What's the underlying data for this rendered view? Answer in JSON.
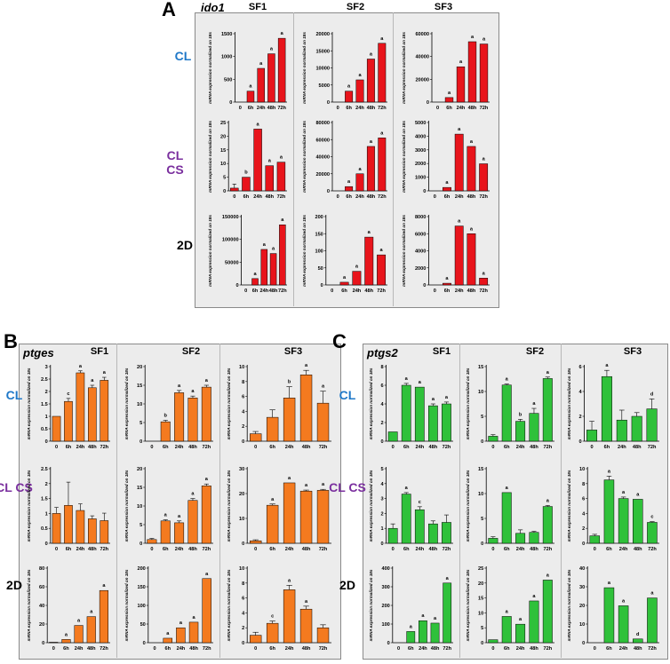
{
  "figure": {
    "colors": {
      "red": "#e8141b",
      "orange": "#f47a1f",
      "green": "#2fc13a",
      "cl": "#1f78c8",
      "clcs": "#7a2f9e",
      "twod": "#000000"
    },
    "ylabel": "mRNA expression normalized on 18s",
    "rows": [
      "CL",
      "CL CS",
      "2D"
    ],
    "columns": [
      "SF1",
      "SF2",
      "SF3"
    ],
    "categories": [
      "0",
      "6h",
      "24h",
      "48h",
      "72h"
    ]
  },
  "panels": [
    {
      "letter": "A",
      "gene": "ido1"
    },
    {
      "letter": "B",
      "gene": "ptges"
    },
    {
      "letter": "C",
      "gene": "ptgs2"
    }
  ],
  "chart_data": [
    {
      "panel": "A",
      "gene": "ido1",
      "type": "bar",
      "color": "red",
      "sheets": [
        {
          "row": "CL",
          "col": "SF1",
          "ticks": [
            "0",
            "500",
            "1000",
            "1500"
          ],
          "ylim": [
            0,
            1500
          ],
          "values": [
            0,
            240,
            740,
            1060,
            1400
          ],
          "errors": [
            0,
            0,
            0,
            0,
            0
          ],
          "letters": [
            "",
            "a",
            "a",
            "a",
            "a"
          ]
        },
        {
          "row": "CL",
          "col": "SF2",
          "ticks": [
            "0",
            "5000",
            "10000",
            "15000",
            "20000"
          ],
          "ylim": [
            0,
            20000
          ],
          "values": [
            0,
            3200,
            6500,
            12600,
            17200
          ],
          "errors": [
            0,
            0,
            0,
            0,
            0
          ],
          "letters": [
            "",
            "a",
            "a",
            "a",
            "a"
          ]
        },
        {
          "row": "CL",
          "col": "SF3",
          "ticks": [
            "0",
            "20000",
            "40000",
            "60000"
          ],
          "ylim": [
            0,
            60000
          ],
          "values": [
            0,
            4000,
            31000,
            53000,
            51000
          ],
          "errors": [
            0,
            0,
            0,
            0,
            0
          ],
          "letters": [
            "",
            "a",
            "a",
            "a",
            "a"
          ]
        },
        {
          "row": "CL CS",
          "col": "SF1",
          "ticks": [
            "0",
            "5",
            "10",
            "15",
            "20",
            "25"
          ],
          "ylim": [
            0,
            25
          ],
          "values": [
            1,
            5,
            22.6,
            9.2,
            10.5
          ],
          "errors": [
            1.5,
            0,
            0,
            0,
            0
          ],
          "letters": [
            "",
            "b",
            "a",
            "a",
            "a"
          ]
        },
        {
          "row": "CL CS",
          "col": "SF2",
          "ticks": [
            "0",
            "20000",
            "40000",
            "60000",
            "80000"
          ],
          "ylim": [
            0,
            80000
          ],
          "values": [
            0,
            5000,
            20000,
            52000,
            62000
          ],
          "errors": [
            0,
            0,
            0,
            0,
            0
          ],
          "letters": [
            "",
            "a",
            "a",
            "a",
            "a"
          ]
        },
        {
          "row": "CL CS",
          "col": "SF3",
          "ticks": [
            "0",
            "1000",
            "2000",
            "3000",
            "4000",
            "5000"
          ],
          "ylim": [
            0,
            5000
          ],
          "values": [
            0,
            250,
            4150,
            3250,
            1980
          ],
          "errors": [
            0,
            0,
            0,
            0,
            0
          ],
          "letters": [
            "",
            "a",
            "a",
            "a",
            "a"
          ]
        },
        {
          "row": "2D",
          "col": "SF1",
          "ticks": [
            "0",
            "50000",
            "100000",
            "150000"
          ],
          "ylim": [
            0,
            150000
          ],
          "values": [
            0,
            14000,
            78000,
            69000,
            132000
          ],
          "errors": [
            0,
            0,
            0,
            0,
            0
          ],
          "letters": [
            "",
            "a",
            "a",
            "a",
            "a"
          ]
        },
        {
          "row": "2D",
          "col": "SF2",
          "ticks": [
            "0",
            "50",
            "100",
            "150",
            "200"
          ],
          "ylim": [
            0,
            200
          ],
          "values": [
            0,
            8,
            40,
            140,
            88
          ],
          "errors": [
            0,
            0,
            0,
            0,
            0
          ],
          "letters": [
            "",
            "a",
            "a",
            "a",
            "a"
          ]
        },
        {
          "row": "2D",
          "col": "SF3",
          "ticks": [
            "0",
            "2000",
            "4000",
            "6000",
            "8000"
          ],
          "ylim": [
            0,
            8000
          ],
          "values": [
            0,
            200,
            6900,
            6000,
            800
          ],
          "errors": [
            0,
            0,
            0,
            0,
            0
          ],
          "letters": [
            "",
            "a",
            "a",
            "a",
            "a"
          ]
        }
      ]
    },
    {
      "panel": "B",
      "gene": "ptges",
      "type": "bar",
      "color": "orange",
      "sheets": [
        {
          "row": "CL",
          "col": "SF1",
          "ticks": [
            "0",
            "0.5",
            "1",
            "1.5",
            "2",
            "2.5",
            "3"
          ],
          "ylim": [
            0,
            3
          ],
          "values": [
            1,
            1.6,
            2.75,
            2.15,
            2.45
          ],
          "errors": [
            0,
            0.12,
            0.08,
            0.1,
            0.12
          ],
          "letters": [
            "",
            "c",
            "a",
            "a",
            "a"
          ]
        },
        {
          "row": "CL",
          "col": "SF2",
          "ticks": [
            "0",
            "5",
            "10",
            "15",
            "20"
          ],
          "ylim": [
            0,
            20
          ],
          "values": [
            0,
            5.2,
            13,
            11.6,
            14.5
          ],
          "errors": [
            0,
            0.4,
            0.6,
            0.5,
            0.5
          ],
          "letters": [
            "",
            "b",
            "a",
            "a",
            "a"
          ]
        },
        {
          "row": "CL",
          "col": "SF3",
          "ticks": [
            "0",
            "2",
            "4",
            "6",
            "8",
            "10"
          ],
          "ylim": [
            0,
            10
          ],
          "values": [
            1,
            3.2,
            5.8,
            8.9,
            5.1
          ],
          "errors": [
            0.3,
            1.0,
            1.5,
            0.6,
            1.6
          ],
          "letters": [
            "",
            "",
            "b",
            "a",
            "a"
          ]
        },
        {
          "row": "CL CS",
          "col": "SF1",
          "ticks": [
            "0",
            "0.5",
            "1",
            "1.5",
            "2",
            "2.5"
          ],
          "ylim": [
            0,
            2.5
          ],
          "values": [
            1,
            1.27,
            1.1,
            0.82,
            0.76
          ],
          "errors": [
            0.2,
            0.78,
            0.22,
            0.1,
            0.25
          ],
          "letters": [
            "",
            "",
            "",
            "",
            ""
          ]
        },
        {
          "row": "CL CS",
          "col": "SF2",
          "ticks": [
            "0",
            "5",
            "10",
            "15",
            "20"
          ],
          "ylim": [
            0,
            20
          ],
          "values": [
            1,
            6,
            5.5,
            11.5,
            15.4
          ],
          "errors": [
            0.3,
            0.3,
            0.5,
            0.5,
            0.5
          ],
          "letters": [
            "",
            "a",
            "a",
            "a",
            "a"
          ]
        },
        {
          "row": "CL CS",
          "col": "SF3",
          "ticks": [
            "0",
            "10",
            "20",
            "30"
          ],
          "ylim": [
            0,
            30
          ],
          "values": [
            1,
            15.3,
            24.3,
            21,
            21.3
          ],
          "errors": [
            0.4,
            0.5,
            0,
            0.4,
            0.4
          ],
          "letters": [
            "",
            "a",
            "a",
            "a",
            "a"
          ]
        },
        {
          "row": "2D",
          "col": "SF1",
          "ticks": [
            "0",
            "20",
            "40",
            "60",
            "80"
          ],
          "ylim": [
            0,
            80
          ],
          "values": [
            0.5,
            3.5,
            18.5,
            28,
            56
          ],
          "errors": [
            0,
            0,
            0,
            0,
            0
          ],
          "letters": [
            "",
            "a",
            "a",
            "a",
            "a"
          ]
        },
        {
          "row": "2D",
          "col": "SF2",
          "ticks": [
            "0",
            "50",
            "100",
            "150",
            "200"
          ],
          "ylim": [
            0,
            200
          ],
          "values": [
            0,
            12,
            40,
            55,
            172
          ],
          "errors": [
            0,
            0,
            0,
            0,
            0
          ],
          "letters": [
            "",
            "a",
            "a",
            "a",
            "a"
          ]
        },
        {
          "row": "2D",
          "col": "SF3",
          "ticks": [
            "0",
            "2",
            "4",
            "6",
            "8",
            "10"
          ],
          "ylim": [
            0,
            10
          ],
          "values": [
            1,
            2.6,
            7.1,
            4.5,
            2
          ],
          "errors": [
            0.4,
            0.3,
            0.6,
            0.4,
            0.4
          ],
          "letters": [
            "",
            "c",
            "a",
            "a",
            ""
          ]
        }
      ]
    },
    {
      "panel": "C",
      "gene": "ptgs2",
      "type": "bar",
      "color": "green",
      "sheets": [
        {
          "row": "CL",
          "col": "SF1",
          "ticks": [
            "0",
            "2",
            "4",
            "6",
            "8"
          ],
          "ylim": [
            0,
            8
          ],
          "values": [
            1,
            6,
            5.8,
            3.8,
            4
          ],
          "errors": [
            0,
            0.2,
            0,
            0.2,
            0.2
          ],
          "letters": [
            "",
            "a",
            "a",
            "a",
            "a"
          ]
        },
        {
          "row": "CL",
          "col": "SF2",
          "ticks": [
            "0",
            "5",
            "10",
            "15"
          ],
          "ylim": [
            0,
            15
          ],
          "values": [
            1,
            11.3,
            4,
            5.6,
            12.6
          ],
          "errors": [
            0.3,
            0.2,
            0.4,
            1,
            0.3
          ],
          "letters": [
            "",
            "a",
            "b",
            "a",
            "a"
          ]
        },
        {
          "row": "CL",
          "col": "SF3",
          "ticks": [
            "0",
            "2",
            "4",
            "6"
          ],
          "ylim": [
            0,
            6
          ],
          "values": [
            0.9,
            5.2,
            1.7,
            2,
            2.6
          ],
          "errors": [
            0.7,
            0.5,
            0.8,
            0.3,
            0.8
          ],
          "letters": [
            "",
            "a",
            "",
            "",
            "d"
          ]
        },
        {
          "row": "CL CS",
          "col": "SF1",
          "ticks": [
            "0",
            "1",
            "2",
            "3",
            "4",
            "5"
          ],
          "ylim": [
            0,
            5
          ],
          "values": [
            1,
            3.3,
            2.25,
            1.3,
            1.4
          ],
          "errors": [
            0.3,
            0.1,
            0.2,
            0.2,
            0.5
          ],
          "letters": [
            "",
            "a",
            "c",
            "",
            ""
          ]
        },
        {
          "row": "CL CS",
          "col": "SF2",
          "ticks": [
            "0",
            "5",
            "10",
            "15"
          ],
          "ylim": [
            0,
            15
          ],
          "values": [
            1,
            10.2,
            2,
            2.2,
            7.4
          ],
          "errors": [
            0.3,
            0,
            0.7,
            0.2,
            0.2
          ],
          "letters": [
            "",
            "a",
            "",
            "",
            "a"
          ]
        },
        {
          "row": "CL CS",
          "col": "SF3",
          "ticks": [
            "0",
            "2",
            "4",
            "6",
            "8",
            "10"
          ],
          "ylim": [
            0,
            10
          ],
          "values": [
            1,
            8.5,
            6,
            5.9,
            2.8
          ],
          "errors": [
            0.2,
            0.5,
            0.2,
            0,
            0.1
          ],
          "letters": [
            "",
            "a",
            "a",
            "a",
            "c"
          ]
        },
        {
          "row": "2D",
          "col": "SF1",
          "ticks": [
            "0",
            "100",
            "200",
            "300",
            "400"
          ],
          "ylim": [
            0,
            400
          ],
          "values": [
            0,
            60,
            118,
            105,
            320
          ],
          "errors": [
            0,
            0,
            0,
            0,
            0
          ],
          "letters": [
            "",
            "a",
            "a",
            "a",
            "a"
          ]
        },
        {
          "row": "2D",
          "col": "SF2",
          "ticks": [
            "0",
            "5",
            "10",
            "15",
            "20",
            "25"
          ],
          "ylim": [
            0,
            25
          ],
          "values": [
            1,
            8.8,
            6.2,
            14,
            21
          ],
          "errors": [
            0,
            0,
            0,
            0,
            0
          ],
          "letters": [
            "",
            "a",
            "a",
            "a",
            "a"
          ]
        },
        {
          "row": "2D",
          "col": "SF3",
          "ticks": [
            "0",
            "10",
            "20",
            "30",
            "40"
          ],
          "ylim": [
            0,
            40
          ],
          "values": [
            0,
            29.5,
            19.8,
            2,
            24
          ],
          "errors": [
            0,
            0,
            0,
            0,
            0
          ],
          "letters": [
            "",
            "a",
            "a",
            "d",
            "a"
          ]
        }
      ]
    }
  ]
}
